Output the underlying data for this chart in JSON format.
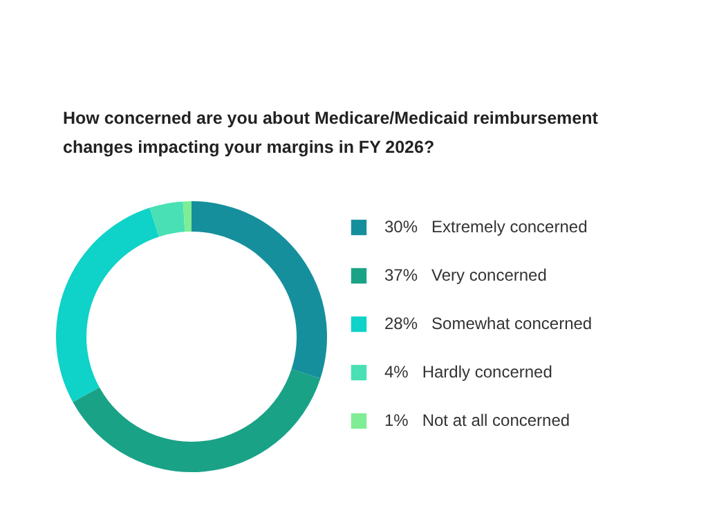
{
  "chart_data": {
    "type": "donut",
    "title": "How concerned are you about Medicare/Medicaid reimbursement changes impacting your margins in FY 2026?",
    "categories": [
      "Extremely concerned",
      "Very concerned",
      "Somewhat concerned",
      "Hardly concerned",
      "Not at all concerned"
    ],
    "values": [
      30,
      37,
      28,
      4,
      1
    ],
    "colors": [
      "#168f9c",
      "#1aa287",
      "#0fd2c8",
      "#48e0b4",
      "#7eed96"
    ],
    "value_labels": [
      "30%",
      "37%",
      "28%",
      "4%",
      "1%"
    ],
    "legend": "right"
  }
}
